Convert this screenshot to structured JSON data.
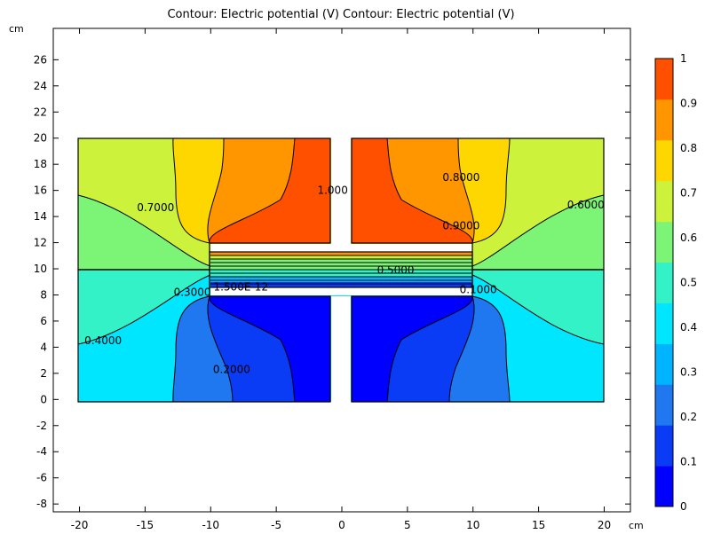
{
  "chart_data": {
    "type": "contour",
    "title": "Contour: Electric potential (V)  Contour: Electric potential (V)",
    "unit_label": "cm",
    "xlim": [
      -22,
      22
    ],
    "ylim": [
      -8.6,
      28.4
    ],
    "x_ticks": [
      -20,
      -15,
      -10,
      -5,
      0,
      5,
      10,
      15,
      20
    ],
    "x_tick_labels": [
      "-20",
      "-15",
      "-10",
      "-5",
      "0",
      "5",
      "10",
      "15",
      "20"
    ],
    "y_ticks": [
      -8,
      -6,
      -4,
      -2,
      0,
      2,
      4,
      6,
      8,
      10,
      12,
      14,
      16,
      18,
      20,
      22,
      24,
      26
    ],
    "y_tick_labels": [
      "-8",
      "-6",
      "-4",
      "-2",
      "0",
      "2",
      "4",
      "6",
      "8",
      "10",
      "12",
      "14",
      "16",
      "18",
      "20",
      "22",
      "24",
      "26"
    ],
    "colorbar": {
      "min": 0,
      "max": 1,
      "ticks": [
        0,
        0.1,
        0.2,
        0.3,
        0.4,
        0.5,
        0.6,
        0.7,
        0.8,
        0.9,
        1
      ],
      "tick_labels": [
        "0",
        "0.1",
        "0.2",
        "0.3",
        "0.4",
        "0.5",
        "0.6",
        "0.7",
        "0.8",
        "0.9",
        "1"
      ],
      "colors": [
        "#0000ff",
        "#0a3cf5",
        "#1f78f0",
        "#00b4ff",
        "#00e6ff",
        "#33f2c8",
        "#7cf576",
        "#ccf23c",
        "#ffd700",
        "#ff9600",
        "#ff5000"
      ]
    },
    "levels": [
      0,
      0.1,
      0.2,
      0.3,
      0.4,
      0.5,
      0.6,
      0.7,
      0.8,
      0.9,
      1
    ],
    "contour_labels": [
      {
        "text": "0.7000",
        "x": -14.2,
        "y": 14.7
      },
      {
        "text": "1.000",
        "x": -0.7,
        "y": 16.0
      },
      {
        "text": "0.8000",
        "x": 9.1,
        "y": 17.0
      },
      {
        "text": "0.6000",
        "x": 18.6,
        "y": 14.9
      },
      {
        "text": "0.9000",
        "x": 9.1,
        "y": 13.3
      },
      {
        "text": "0.5000",
        "x": 4.1,
        "y": 9.9
      },
      {
        "text": "0.3000",
        "x": -11.4,
        "y": 8.2
      },
      {
        "text": "1.500E-12",
        "x": -7.7,
        "y": 8.6
      },
      {
        "text": "0.1000",
        "x": 10.4,
        "y": 8.4
      },
      {
        "text": "0.4000",
        "x": -18.2,
        "y": 4.5
      },
      {
        "text": "0.2000",
        "x": -8.4,
        "y": 2.3
      }
    ]
  }
}
